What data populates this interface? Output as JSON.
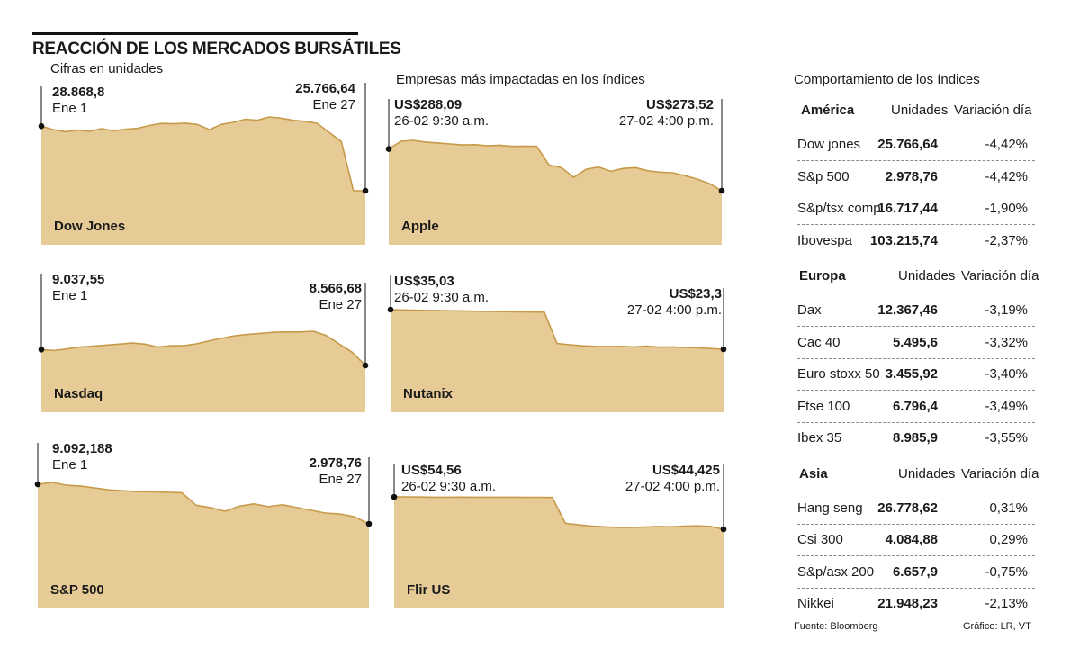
{
  "header": {
    "title": "REACCIÓN DE LOS MERCADOS BURSÁTILES",
    "subtitle": "Cifras en unidades",
    "companies_title": "Empresas más impactadas en los índices"
  },
  "colors": {
    "area": "#e6cb96",
    "line": "#c79a4a",
    "marker": "#111111"
  },
  "chart_data": [
    {
      "type": "area",
      "name": "Dow Jones",
      "start": {
        "value": "28.868,8",
        "date": "Ene 1"
      },
      "end": {
        "value": "25.766,64",
        "date": "Ene 27"
      },
      "values": [
        28868.8,
        28700,
        28600,
        28680,
        28620,
        28750,
        28650,
        28720,
        28760,
        28900,
        29000,
        28980,
        29010,
        28950,
        28700,
        28950,
        29050,
        29200,
        29150,
        29310,
        29250,
        29150,
        29100,
        29000,
        28560,
        28130,
        25766.64,
        25766.64
      ]
    },
    {
      "type": "area",
      "name": "Nasdaq",
      "start": {
        "value": "9.037,55",
        "date": "Ene 1"
      },
      "end": {
        "value": "8.566,68",
        "date": "Ene 27"
      },
      "values": [
        9037.55,
        9010,
        9060,
        9110,
        9140,
        9170,
        9200,
        9230,
        9200,
        9110,
        9150,
        9150,
        9210,
        9300,
        9380,
        9450,
        9490,
        9520,
        9550,
        9560,
        9560,
        9580,
        9450,
        9200,
        8950,
        8566.68
      ]
    },
    {
      "type": "area",
      "name": "S&P 500",
      "start": {
        "value": "9.092,188",
        "date": "Ene 1"
      },
      "end": {
        "value": "2.978,76",
        "date": "Ene 27"
      },
      "values": [
        100,
        100.4,
        99.8,
        99.6,
        99.2,
        98.8,
        98.6,
        98.4,
        98.4,
        98.3,
        98.2,
        95.5,
        95,
        94.2,
        95.3,
        95.8,
        95.2,
        95.6,
        95.0,
        94.4,
        93.8,
        93.6,
        93.0,
        91.5
      ]
    },
    {
      "type": "area",
      "name": "Apple",
      "start": {
        "value": "US$288,09",
        "date": "26-02 9:30 a.m."
      },
      "end": {
        "value": "US$273,52",
        "date": "27-02 4:00 p.m."
      },
      "values": [
        288.09,
        290.8,
        291.1,
        290.5,
        290.2,
        289.8,
        289.5,
        289.6,
        289.2,
        289.4,
        289.0,
        289.1,
        289.0,
        282.5,
        281.6,
        278.2,
        281.0,
        281.8,
        280.3,
        281.3,
        281.6,
        280.5,
        280.0,
        279.8,
        278.8,
        277.6,
        276.0,
        273.52
      ]
    },
    {
      "type": "area",
      "name": "Nutanix",
      "start": {
        "value": "US$35,03",
        "date": "26-02 9:30 a.m."
      },
      "end": {
        "value": "US$23,3",
        "date": "27-02 4:00 p.m."
      },
      "values": [
        35.03,
        34.92,
        34.85,
        34.8,
        34.75,
        34.68,
        34.62,
        34.55,
        34.5,
        34.45,
        34.4,
        34.35,
        34.3,
        25.0,
        24.6,
        24.3,
        24.15,
        24.1,
        24.15,
        24.0,
        24.2,
        23.9,
        24.0,
        23.8,
        23.7,
        23.5,
        23.3
      ]
    },
    {
      "type": "area",
      "name": "Flir US",
      "start": {
        "value": "US$54,56",
        "date": "26-02 9:30 a.m."
      },
      "end": {
        "value": "US$44,425",
        "date": "27-02 4:00 p.m."
      },
      "values": [
        54.56,
        54.6,
        54.55,
        54.5,
        54.5,
        54.52,
        54.5,
        54.48,
        54.5,
        54.5,
        54.45,
        54.45,
        54.4,
        46.3,
        45.8,
        45.4,
        45.2,
        45.0,
        45.0,
        45.1,
        45.3,
        45.2,
        45.4,
        45.5,
        45.3,
        44.425
      ]
    }
  ],
  "table": {
    "title": "Comportamiento de los índices",
    "col_units": "Unidades",
    "col_change": "Variación día",
    "groups": [
      {
        "name": "América",
        "rows": [
          {
            "name": "Dow jones",
            "units": "25.766,64",
            "change": "-4,42%"
          },
          {
            "name": "S&p 500",
            "units": "2.978,76",
            "change": "-4,42%"
          },
          {
            "name": "S&p/tsx comp",
            "units": "16.717,44",
            "change": "-1,90%"
          },
          {
            "name": "Ibovespa",
            "units": "103.215,74",
            "change": "-2,37%"
          }
        ]
      },
      {
        "name": "Europa",
        "rows": [
          {
            "name": "Dax",
            "units": "12.367,46",
            "change": "-3,19%"
          },
          {
            "name": "Cac 40",
            "units": "5.495,6",
            "change": "-3,32%"
          },
          {
            "name": "Euro stoxx 50",
            "units": "3.455,92",
            "change": "-3,40%"
          },
          {
            "name": "Ftse 100",
            "units": "6.796,4",
            "change": "-3,49%"
          },
          {
            "name": "Ibex 35",
            "units": "8.985,9",
            "change": "-3,55%"
          }
        ]
      },
      {
        "name": "Asia",
        "rows": [
          {
            "name": "Hang seng",
            "units": "26.778,62",
            "change": "0,31%"
          },
          {
            "name": "Csi 300",
            "units": "4.084,88",
            "change": "0,29%"
          },
          {
            "name": "S&p/asx 200",
            "units": "6.657,9",
            "change": "-0,75%"
          },
          {
            "name": "Nikkei",
            "units": "21.948,23",
            "change": "-2,13%"
          }
        ]
      }
    ]
  },
  "footer": {
    "source": "Fuente: Bloomberg",
    "credit": "Gráfico: LR, VT"
  }
}
